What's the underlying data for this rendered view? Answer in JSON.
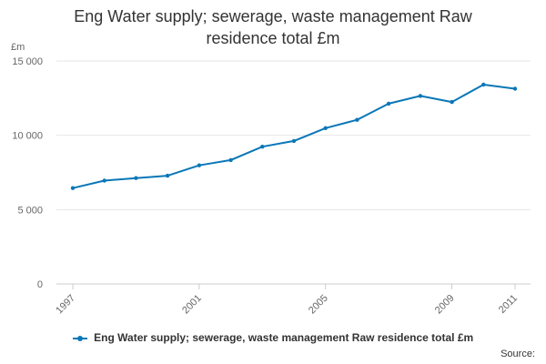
{
  "chart_data": {
    "type": "line",
    "title": "Eng Water supply; sewerage, waste management Raw residence total £m",
    "title_lines": [
      "Eng Water supply; sewerage, waste management Raw",
      "residence total £m"
    ],
    "ylabel": "£m",
    "xlabel": "",
    "ylim": [
      0,
      15000
    ],
    "yticks": [
      0,
      5000,
      10000,
      15000
    ],
    "ytick_labels": [
      "0",
      "5 000",
      "10 000",
      "15 000"
    ],
    "xticks": [
      1997,
      2001,
      2005,
      2009,
      2011
    ],
    "xtick_labels": [
      "1997",
      "2001",
      "2005",
      "2009",
      "2011"
    ],
    "grid": true,
    "legend_position": "bottom",
    "series": [
      {
        "name": "Eng Water supply; sewerage, waste management Raw residence total £m",
        "color": "#0a77b7",
        "x": [
          1997,
          1998,
          1999,
          2000,
          2001,
          2002,
          2003,
          2004,
          2005,
          2006,
          2007,
          2008,
          2009,
          2010,
          2011
        ],
        "values": [
          6450,
          6950,
          7120,
          7280,
          7980,
          8330,
          9230,
          9620,
          10480,
          11040,
          12130,
          12650,
          12240,
          13410,
          13130
        ]
      }
    ]
  },
  "source_label": "Source:"
}
